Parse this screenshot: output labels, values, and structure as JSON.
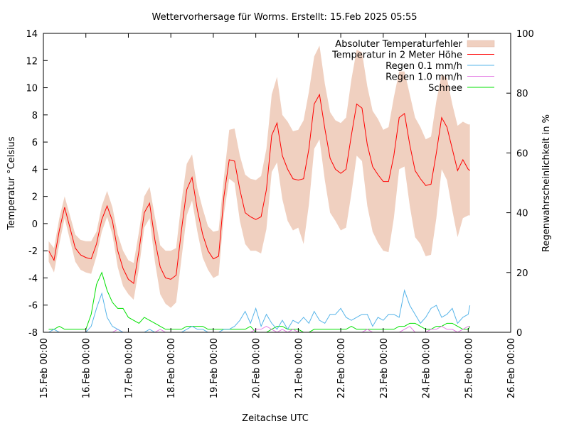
{
  "chart_data": {
    "type": "line",
    "title": "Wettervorhersage für Worms. Erstellt: 15.Feb 2025 05:55",
    "xlabel": "Zeitachse UTC",
    "ylabel": "Temperatur °Celsius",
    "y2label": "Regenwahrscheinlichkeit in %",
    "xlim_days": [
      0,
      11
    ],
    "ylim": [
      -8,
      14
    ],
    "y2lim": [
      0,
      100
    ],
    "grid": false,
    "legend_position": "top-right",
    "x_tick_labels": [
      "15.Feb 00:00",
      "16.Feb 00:00",
      "17.Feb 00:00",
      "18.Feb 00:00",
      "19.Feb 00:00",
      "20.Feb 00:00",
      "21.Feb 00:00",
      "22.Feb 00:00",
      "23.Feb 00:00",
      "24.Feb 00:00",
      "25.Feb 00:00",
      "26.Feb 00:00"
    ],
    "y_ticks": [
      -8,
      -6,
      -4,
      -2,
      0,
      2,
      4,
      6,
      8,
      10,
      12,
      14
    ],
    "y2_ticks": [
      0,
      20,
      40,
      60,
      80,
      100
    ],
    "x_unit": "days since 15.Feb 00:00 (3-hour steps starting at 0.125)",
    "x": [
      0.125,
      0.25,
      0.375,
      0.5,
      0.625,
      0.75,
      0.875,
      1.0,
      1.125,
      1.25,
      1.375,
      1.5,
      1.625,
      1.75,
      1.875,
      2.0,
      2.125,
      2.25,
      2.375,
      2.5,
      2.625,
      2.75,
      2.875,
      3.0,
      3.125,
      3.25,
      3.375,
      3.5,
      3.625,
      3.75,
      3.875,
      4.0,
      4.125,
      4.25,
      4.375,
      4.5,
      4.625,
      4.75,
      4.875,
      5.0,
      5.125,
      5.25,
      5.375,
      5.5,
      5.625,
      5.75,
      5.875,
      6.0,
      6.125,
      6.25,
      6.375,
      6.5,
      6.625,
      6.75,
      6.875,
      7.0,
      7.125,
      7.25,
      7.375,
      7.5,
      7.625,
      7.75,
      7.875,
      8.0,
      8.125,
      8.25,
      8.375,
      8.5,
      8.625,
      8.75,
      8.875,
      9.0,
      9.125,
      9.25,
      9.375,
      9.5,
      9.625,
      9.75,
      9.875,
      10.0,
      10.04
    ],
    "series": [
      {
        "name": "Temperatur in 2 Meter Höhe",
        "color": "#ff0000",
        "axis": "y",
        "values": [
          -2.0,
          -2.7,
          -0.5,
          1.2,
          -0.3,
          -1.8,
          -2.3,
          -2.5,
          -2.6,
          -1.5,
          0.3,
          1.3,
          0.2,
          -2.0,
          -3.3,
          -4.1,
          -4.4,
          -2.0,
          0.8,
          1.5,
          -1.2,
          -3.2,
          -4.0,
          -4.1,
          -3.8,
          -0.5,
          2.5,
          3.4,
          1.0,
          -0.8,
          -2.0,
          -2.6,
          -2.4,
          2.0,
          4.7,
          4.6,
          2.5,
          0.8,
          0.5,
          0.3,
          0.5,
          2.5,
          6.5,
          7.4,
          5.0,
          4.0,
          3.3,
          3.2,
          3.3,
          5.5,
          8.8,
          9.5,
          7.0,
          4.8,
          4.0,
          3.7,
          4.0,
          6.5,
          8.8,
          8.5,
          5.8,
          4.2,
          3.6,
          3.1,
          3.1,
          5.0,
          7.8,
          8.1,
          5.8,
          3.9,
          3.3,
          2.8,
          2.9,
          5.2,
          7.8,
          7.1,
          5.5,
          3.9,
          4.7,
          4.0,
          3.9
        ]
      },
      {
        "name": "Absoluter Temperaturfehler",
        "color": "#f0d0c0",
        "axis": "y",
        "type": "band",
        "lower": [
          -2.8,
          -3.6,
          -1.5,
          0.4,
          -1.2,
          -2.8,
          -3.4,
          -3.6,
          -3.7,
          -2.4,
          -0.6,
          0.5,
          -0.8,
          -3.2,
          -4.6,
          -5.2,
          -5.6,
          -3.3,
          -0.3,
          0.4,
          -2.8,
          -5.2,
          -5.9,
          -6.2,
          -5.8,
          -2.6,
          0.6,
          1.7,
          -0.6,
          -2.5,
          -3.4,
          -4.0,
          -3.8,
          0.7,
          3.3,
          3.0,
          0.2,
          -1.5,
          -2.0,
          -2.0,
          -2.2,
          -0.4,
          3.8,
          4.5,
          1.8,
          0.2,
          -0.5,
          -0.3,
          -1.5,
          1.4,
          5.5,
          6.2,
          3.2,
          0.8,
          0.2,
          -0.5,
          -0.3,
          2.2,
          5.0,
          4.6,
          1.3,
          -0.6,
          -1.4,
          -2.0,
          -2.1,
          0.4,
          4.0,
          4.2,
          1.3,
          -1.0,
          -1.5,
          -2.4,
          -2.3,
          0.4,
          4.0,
          3.2,
          1.0,
          -1.0,
          0.4,
          0.6,
          0.6
        ],
        "upper": [
          -1.3,
          -1.8,
          0.4,
          2.0,
          0.6,
          -0.8,
          -1.2,
          -1.3,
          -1.3,
          -0.6,
          1.3,
          2.4,
          1.2,
          -0.8,
          -2.0,
          -2.7,
          -2.9,
          -0.6,
          2.0,
          2.7,
          0.5,
          -1.6,
          -2.0,
          -2.0,
          -1.8,
          1.6,
          4.4,
          5.1,
          2.6,
          1.1,
          -0.2,
          -0.6,
          -0.5,
          3.4,
          6.9,
          7.0,
          5.0,
          3.6,
          3.3,
          3.2,
          3.5,
          5.5,
          9.5,
          10.8,
          8.0,
          7.5,
          6.8,
          6.9,
          7.6,
          9.7,
          12.3,
          13.1,
          10.3,
          8.2,
          7.6,
          7.4,
          7.8,
          10.6,
          12.8,
          12.6,
          10.1,
          8.3,
          7.7,
          6.9,
          7.1,
          9.3,
          11.2,
          11.2,
          9.5,
          7.8,
          7.1,
          6.2,
          6.4,
          9.0,
          11.0,
          10.7,
          8.8,
          7.2,
          7.5,
          7.3,
          7.3
        ]
      },
      {
        "name": "Regen 0.1 mm/h",
        "color": "#56b4e9",
        "axis": "y2",
        "values": [
          0,
          1,
          0,
          0,
          0,
          0,
          0,
          0,
          2,
          8,
          13,
          5,
          2,
          1,
          0,
          0,
          0,
          0,
          0,
          1,
          0,
          0,
          0,
          0,
          0,
          0,
          1,
          2,
          1,
          1,
          0,
          0,
          0,
          1,
          1,
          2,
          4,
          7,
          3,
          8,
          2,
          6,
          3,
          1,
          4,
          1,
          4,
          3,
          5,
          3,
          7,
          4,
          3,
          6,
          6,
          8,
          5,
          4,
          5,
          6,
          6,
          2,
          5,
          4,
          6,
          6,
          5,
          14,
          9,
          6,
          3,
          5,
          8,
          9,
          5,
          6,
          8,
          3,
          5,
          6,
          9
        ],
        "unit": "%"
      },
      {
        "name": "Regen 1.0 mm/h",
        "color": "#e57ee5",
        "axis": "y2",
        "values": [
          0,
          0,
          0,
          0,
          0,
          0,
          0,
          0,
          0,
          0,
          0,
          0,
          0,
          1,
          0,
          0,
          0,
          0,
          0,
          0,
          0,
          1,
          0,
          0,
          0,
          0,
          0,
          0,
          0,
          0,
          0,
          0,
          0,
          0,
          0,
          0,
          0,
          0,
          0,
          1,
          1,
          2,
          1,
          0,
          1,
          0,
          1,
          0,
          0,
          0,
          0,
          0,
          0,
          0,
          0,
          0,
          0,
          0,
          0,
          0,
          1,
          0,
          0,
          0,
          0,
          0,
          0,
          1,
          2,
          0,
          0,
          0,
          1,
          1,
          2,
          1,
          1,
          0,
          1,
          2,
          2
        ],
        "unit": "%"
      },
      {
        "name": "Schnee",
        "color": "#00e000",
        "axis": "y2",
        "values": [
          1,
          1,
          2,
          1,
          1,
          1,
          1,
          1,
          6,
          16,
          20,
          14,
          10,
          8,
          8,
          5,
          4,
          3,
          5,
          4,
          3,
          2,
          1,
          1,
          1,
          1,
          2,
          2,
          2,
          2,
          1,
          1,
          1,
          1,
          1,
          1,
          1,
          1,
          2,
          0,
          0,
          0,
          1,
          2,
          2,
          1,
          1,
          1,
          0,
          0,
          1,
          1,
          1,
          1,
          1,
          1,
          1,
          2,
          1,
          1,
          1,
          1,
          1,
          1,
          1,
          1,
          2,
          2,
          3,
          3,
          2,
          1,
          1,
          2,
          2,
          3,
          3,
          2,
          1,
          1,
          2
        ],
        "unit": "%"
      }
    ]
  }
}
